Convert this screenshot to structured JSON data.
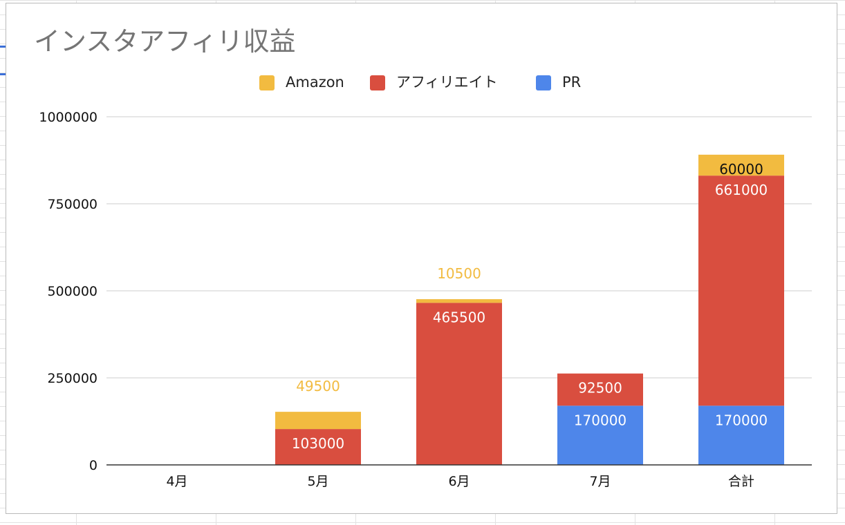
{
  "chart_data": {
    "type": "bar",
    "stacked": true,
    "title": "インスタアフィリ収益",
    "categories": [
      "4月",
      "5月",
      "6月",
      "7月",
      "合計"
    ],
    "series": [
      {
        "name": "PR",
        "color": "#4e86ea",
        "values": [
          0,
          0,
          0,
          170000,
          170000
        ]
      },
      {
        "name": "アフィリエイト",
        "color": "#d94e3f",
        "values": [
          0,
          103000,
          465500,
          92500,
          661000
        ]
      },
      {
        "name": "Amazon",
        "color": "#f2bb40",
        "values": [
          0,
          49500,
          10500,
          0,
          60000
        ]
      }
    ],
    "legend_order": [
      "Amazon",
      "アフィリエイト",
      "PR"
    ],
    "legend_position": "top-center",
    "yticks": [
      0,
      250000,
      500000,
      750000,
      1000000
    ],
    "ytick_labels": [
      "0",
      "250000",
      "500000",
      "750000",
      "1000000"
    ],
    "ylim": [
      0,
      1000000
    ],
    "grid": true,
    "xlabel": "",
    "ylabel": ""
  }
}
